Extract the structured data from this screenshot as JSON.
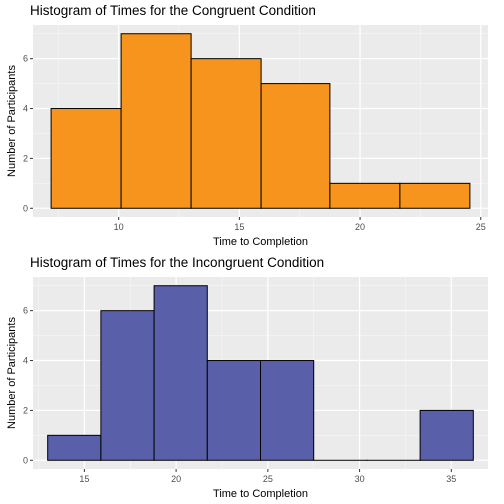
{
  "chart_data": [
    {
      "type": "bar",
      "subtype": "histogram",
      "title": "Histogram of Times for the Congruent Condition",
      "xlabel": "Time to Completion",
      "ylabel": "Number of Participants",
      "bins": [
        {
          "start": 7.2,
          "end": 10.1,
          "count": 4
        },
        {
          "start": 10.1,
          "end": 13.0,
          "count": 7
        },
        {
          "start": 13.0,
          "end": 15.9,
          "count": 6
        },
        {
          "start": 15.9,
          "end": 18.75,
          "count": 5
        },
        {
          "start": 18.75,
          "end": 21.65,
          "count": 1
        },
        {
          "start": 21.65,
          "end": 24.55,
          "count": 1
        }
      ],
      "xlim": [
        6.45,
        25.3
      ],
      "ylim": [
        -0.35,
        7.35
      ],
      "xticks": [
        10,
        15,
        20,
        25
      ],
      "yticks": [
        0,
        2,
        4,
        6
      ],
      "fill": "#F7941D",
      "grid": true,
      "legend": "none"
    },
    {
      "type": "bar",
      "subtype": "histogram",
      "title": "Histogram of Times for the Incongruent Condition",
      "xlabel": "Time to Completion",
      "ylabel": "Number of Participants",
      "bins": [
        {
          "start": 13.0,
          "end": 15.9,
          "count": 1
        },
        {
          "start": 15.9,
          "end": 18.8,
          "count": 6
        },
        {
          "start": 18.8,
          "end": 21.7,
          "count": 7
        },
        {
          "start": 21.7,
          "end": 24.6,
          "count": 4
        },
        {
          "start": 24.6,
          "end": 27.5,
          "count": 4
        },
        {
          "start": 27.5,
          "end": 30.4,
          "count": 0
        },
        {
          "start": 30.4,
          "end": 33.3,
          "count": 0
        },
        {
          "start": 33.3,
          "end": 36.2,
          "count": 2
        }
      ],
      "xlim": [
        12.2,
        37.0
      ],
      "ylim": [
        -0.35,
        7.35
      ],
      "xticks": [
        15,
        20,
        25,
        30,
        35
      ],
      "yticks": [
        0,
        2,
        4,
        6
      ],
      "fill": "#5A5FAA",
      "grid": true,
      "legend": "none"
    }
  ]
}
